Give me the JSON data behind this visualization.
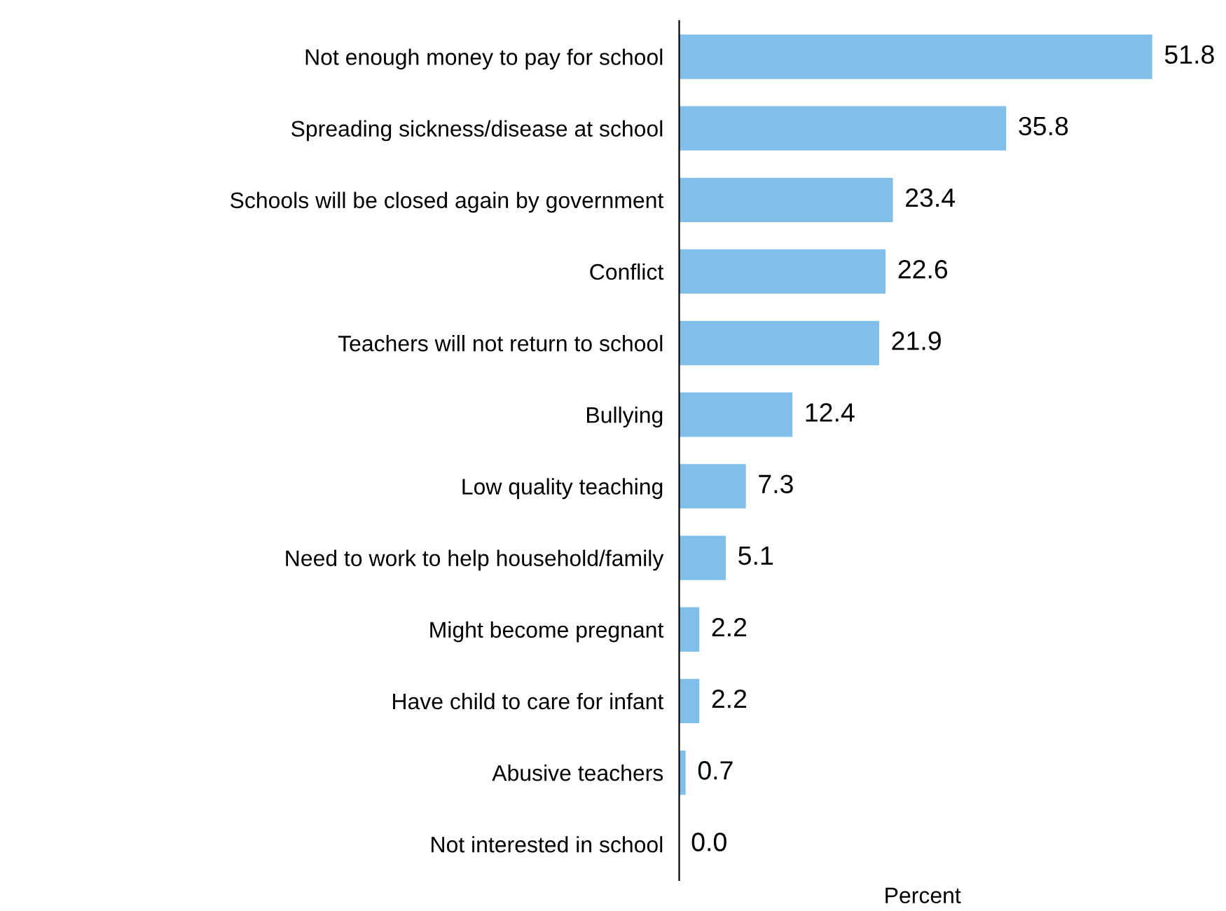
{
  "chart_data": {
    "type": "bar",
    "orientation": "horizontal",
    "xlabel": "Percent",
    "categories": [
      "Not enough money to pay for school",
      "Spreading sickness/disease at school",
      "Schools will be closed again by government",
      "Conflict",
      "Teachers will not return to school",
      "Bullying",
      "Low quality teaching",
      "Need to work to help household/family",
      "Might become pregnant",
      "Have child to care for infant",
      "Abusive teachers",
      "Not interested in school"
    ],
    "values": [
      51.8,
      35.8,
      23.4,
      22.6,
      21.9,
      12.4,
      7.3,
      5.1,
      2.2,
      2.2,
      0.7,
      0.0
    ],
    "value_labels": [
      "51.8",
      "35.8",
      "23.4",
      "22.6",
      "21.9",
      "12.4",
      "7.3",
      "5.1",
      "2.2",
      "2.2",
      "0.7",
      "0.0"
    ],
    "color": "#7fbfea",
    "tick_labels": "y",
    "grid": false,
    "legend": false
  }
}
